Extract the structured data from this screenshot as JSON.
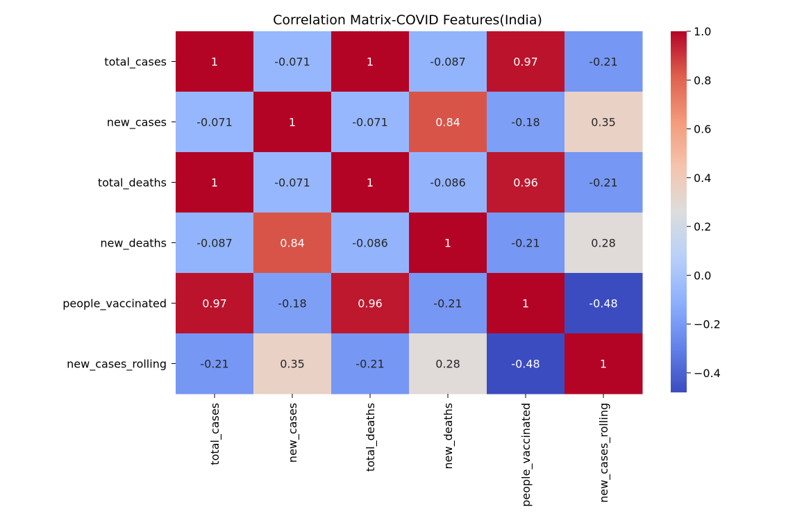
{
  "chart_data": {
    "type": "heatmap",
    "title": "Correlation Matrix-COVID Features(India)",
    "row_labels": [
      "total_cases",
      "new_cases",
      "total_deaths",
      "new_deaths",
      "people_vaccinated",
      "new_cases_rolling"
    ],
    "col_labels": [
      "total_cases",
      "new_cases",
      "total_deaths",
      "new_deaths",
      "people_vaccinated",
      "new_cases_rolling"
    ],
    "values": [
      [
        1,
        -0.071,
        1,
        -0.087,
        0.97,
        -0.21
      ],
      [
        -0.071,
        1,
        -0.071,
        0.84,
        -0.18,
        0.35
      ],
      [
        1,
        -0.071,
        1,
        -0.086,
        0.96,
        -0.21
      ],
      [
        -0.087,
        0.84,
        -0.086,
        1,
        -0.21,
        0.28
      ],
      [
        0.97,
        -0.18,
        0.96,
        -0.21,
        1,
        -0.48
      ],
      [
        -0.21,
        0.35,
        -0.21,
        0.28,
        -0.48,
        1
      ]
    ],
    "annotations": [
      [
        "1",
        "-0.071",
        "1",
        "-0.087",
        "0.97",
        "-0.21"
      ],
      [
        "-0.071",
        "1",
        "-0.071",
        "0.84",
        "-0.18",
        "0.35"
      ],
      [
        "1",
        "-0.071",
        "1",
        "-0.086",
        "0.96",
        "-0.21"
      ],
      [
        "-0.087",
        "0.84",
        "-0.086",
        "1",
        "-0.21",
        "0.28"
      ],
      [
        "0.97",
        "-0.18",
        "0.96",
        "-0.21",
        "1",
        "-0.48"
      ],
      [
        "-0.21",
        "0.35",
        "-0.21",
        "0.28",
        "-0.48",
        "1"
      ]
    ],
    "colormap": "coolwarm",
    "vmin": -0.48,
    "vmax": 1.0,
    "colorbar": {
      "ticks": [
        1.0,
        0.8,
        0.6,
        0.4,
        0.2,
        0.0,
        -0.2,
        -0.4
      ],
      "tick_labels": [
        "1.0",
        "0.8",
        "0.6",
        "0.4",
        "0.2",
        "0.0",
        "−0.2",
        "−0.4"
      ],
      "placement": "right"
    },
    "grid": false,
    "legend": "none"
  }
}
